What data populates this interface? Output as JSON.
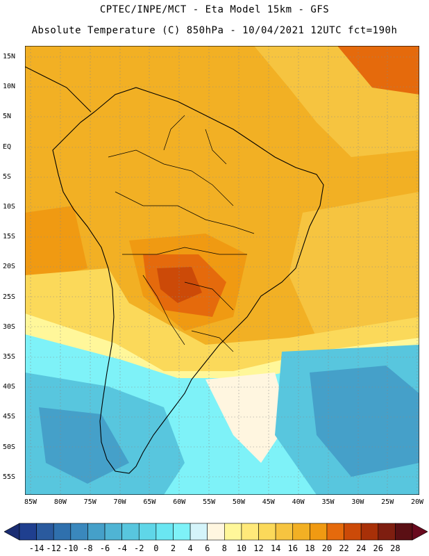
{
  "title_line1": "CPTEC/INPE/MCT -  Eta Model 15km - GFS",
  "title_line2": "Absolute Temperature (C) 850hPa - 10/04/2021 12UTC fct=190h",
  "lat_labels": [
    "15N",
    "10N",
    "5N",
    "EQ",
    "5S",
    "10S",
    "15S",
    "20S",
    "25S",
    "30S",
    "35S",
    "40S",
    "45S",
    "50S",
    "55S"
  ],
  "lon_labels": [
    "85W",
    "80W",
    "75W",
    "70W",
    "65W",
    "60W",
    "55W",
    "50W",
    "45W",
    "40W",
    "35W",
    "30W",
    "25W",
    "20W"
  ],
  "colorbar": {
    "labels": [
      "-14",
      "-12",
      "-10",
      "-8",
      "-6",
      "-4",
      "-2",
      "0",
      "2",
      "4",
      "6",
      "8",
      "10",
      "12",
      "14",
      "16",
      "18",
      "20",
      "22",
      "24",
      "26",
      "28"
    ],
    "colors": [
      "#1f3f8f",
      "#2a5a9e",
      "#2f70ad",
      "#3a88bd",
      "#45a0c9",
      "#4fb4d4",
      "#58c6de",
      "#5fd6e8",
      "#6ae6f2",
      "#7ef2f8",
      "#d4f4fa",
      "#fff6e0",
      "#fff79a",
      "#ffe97a",
      "#fbd95a",
      "#f6c440",
      "#f2b024",
      "#f09a12",
      "#e56a0c",
      "#cc4a08",
      "#a83008",
      "#7e1e10",
      "#5a0f14"
    ],
    "left_end_color": "#1a2d72",
    "right_end_color": "#6a0a1e"
  }
}
